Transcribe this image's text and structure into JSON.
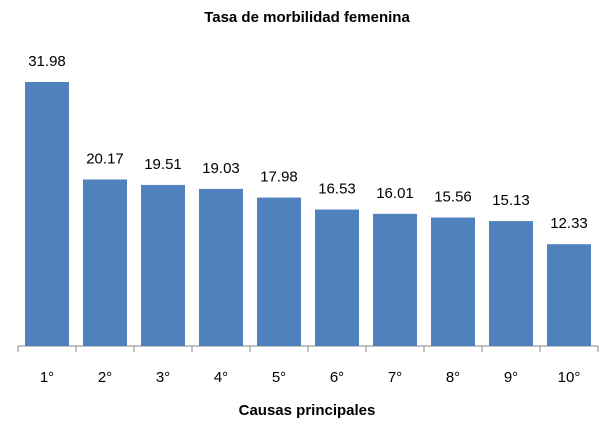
{
  "chart_data": {
    "type": "bar",
    "title": "Tasa de morbilidad femenina",
    "x_label": "Causas principales",
    "categories": [
      "1°",
      "2°",
      "3°",
      "4°",
      "5°",
      "6°",
      "7°",
      "8°",
      "9°",
      "10°"
    ],
    "values": [
      31.98,
      20.17,
      19.51,
      19.03,
      17.98,
      16.53,
      16.01,
      15.56,
      15.13,
      12.33
    ],
    "color": "#4f81bd"
  }
}
